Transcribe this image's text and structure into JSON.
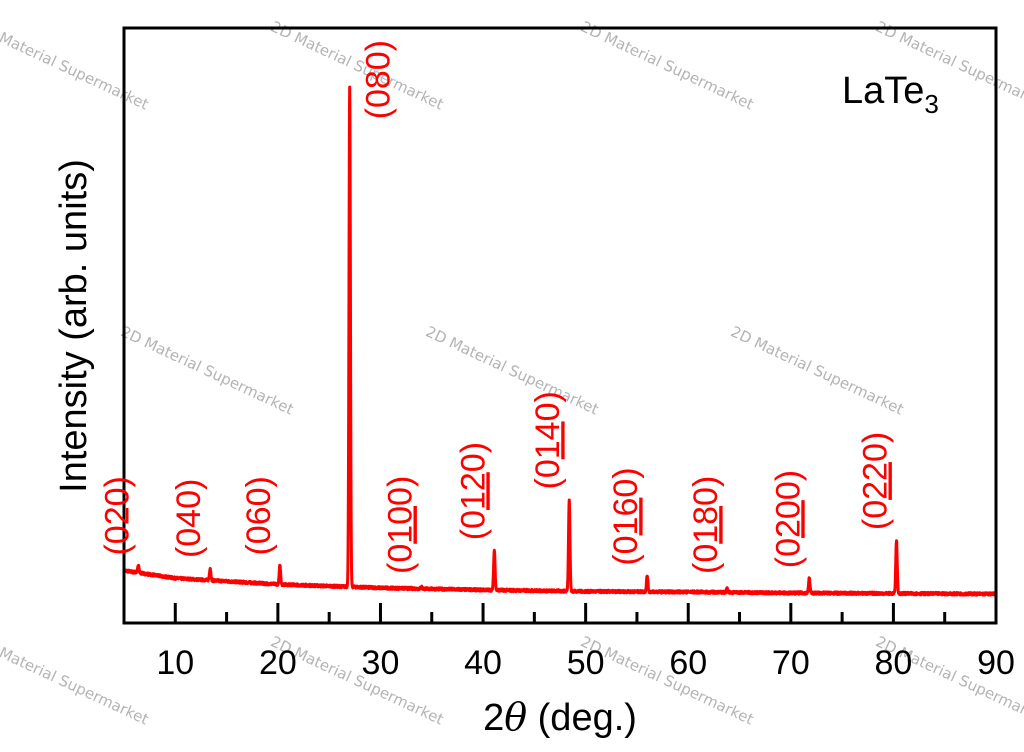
{
  "chart_data": {
    "type": "line",
    "xlabel": "2θ (deg.)",
    "ylabel": "Intensity (arb. units)",
    "compound": {
      "base": "LaTe",
      "sub": "3"
    },
    "xlim": [
      5,
      90
    ],
    "ylim": [
      0,
      100
    ],
    "xticks": [
      10,
      20,
      30,
      40,
      50,
      60,
      70,
      80,
      90
    ],
    "grid": false,
    "line_color": "#ff0000",
    "label_color": "#ff0000",
    "background_level": {
      "x": [
        5,
        10,
        20,
        30,
        40,
        50,
        60,
        70,
        80,
        90
      ],
      "y": [
        5.0,
        3.5,
        2.3,
        1.6,
        1.2,
        0.9,
        0.8,
        0.6,
        0.5,
        0.4
      ]
    },
    "peaks": [
      {
        "label": "(020)",
        "underline": "",
        "x": 6.4,
        "intensity": 6.0
      },
      {
        "label": "(040)",
        "underline": "",
        "x": 13.4,
        "intensity": 5.5
      },
      {
        "label": "(060)",
        "underline": "",
        "x": 20.2,
        "intensity": 6.0
      },
      {
        "label": "(080)",
        "underline": "",
        "x": 27.0,
        "intensity": 100
      },
      {
        "label": "(0100)",
        "underline": "10",
        "x": 34.0,
        "intensity": 1.8
      },
      {
        "label": "(0120)",
        "underline": "12",
        "x": 41.1,
        "intensity": 9.0
      },
      {
        "label": "(0140)",
        "underline": "14",
        "x": 48.4,
        "intensity": 19.0
      },
      {
        "label": "(0160)",
        "underline": "16",
        "x": 56.0,
        "intensity": 4.0
      },
      {
        "label": "(0180)",
        "underline": "18",
        "x": 63.8,
        "intensity": 1.5
      },
      {
        "label": "(0200)",
        "underline": "20",
        "x": 71.8,
        "intensity": 3.5
      },
      {
        "label": "(0220)",
        "underline": "22",
        "x": 80.3,
        "intensity": 11.0
      }
    ]
  },
  "watermark": "2D Material Supermarket"
}
